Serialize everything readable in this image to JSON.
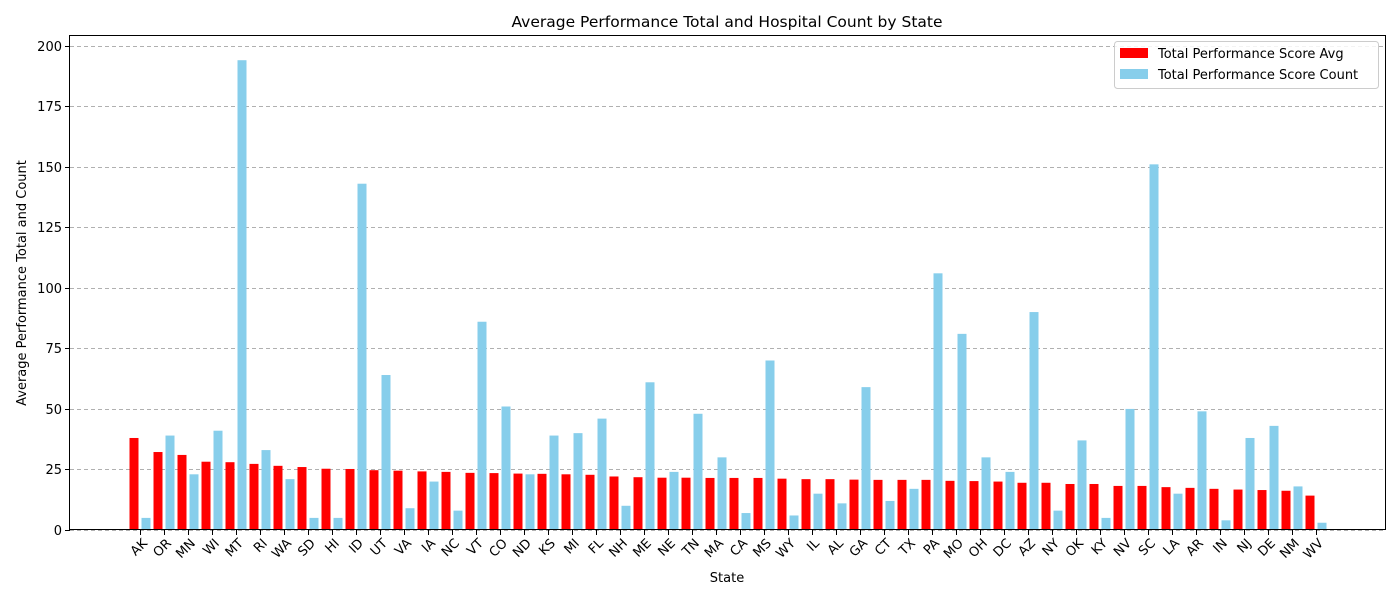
{
  "chart_data": {
    "type": "bar",
    "title": "Average Performance Total and Hospital Count by State",
    "xlabel": "State",
    "ylabel": "Average Performance Total and Count",
    "ylim": [
      0,
      204
    ],
    "yticks": [
      0,
      25,
      50,
      75,
      100,
      125,
      150,
      175,
      200
    ],
    "grid": "y-dashed",
    "legend_position": "top-right",
    "categories": [
      "AK",
      "OR",
      "MN",
      "WI",
      "MT",
      "RI",
      "WA",
      "SD",
      "HI",
      "ID",
      "UT",
      "VA",
      "IA",
      "NC",
      "VT",
      "CO",
      "ND",
      "KS",
      "MI",
      "FL",
      "NH",
      "ME",
      "NE",
      "TN",
      "MA",
      "CA",
      "MS",
      "WY",
      "IL",
      "AL",
      "GA",
      "CT",
      "TX",
      "PA",
      "MO",
      "OH",
      "DC",
      "AZ",
      "NY",
      "OK",
      "KY",
      "NV",
      "SC",
      "LA",
      "AR",
      "IN",
      "NJ",
      "DE",
      "NM",
      "WV"
    ],
    "series": [
      {
        "name": "Total Performance Score Avg",
        "color": "#ff0000",
        "values": [
          38.0,
          32.2,
          31.0,
          28.2,
          28.0,
          27.3,
          26.5,
          26.0,
          25.3,
          25.2,
          24.7,
          24.5,
          24.2,
          24.0,
          23.6,
          23.5,
          23.3,
          23.2,
          23.0,
          22.8,
          22.1,
          21.8,
          21.6,
          21.6,
          21.5,
          21.5,
          21.5,
          21.2,
          21.0,
          21.0,
          20.8,
          20.7,
          20.7,
          20.7,
          20.3,
          20.2,
          20.0,
          19.5,
          19.5,
          19.0,
          19.0,
          18.2,
          18.2,
          17.7,
          17.4,
          17.0,
          16.7,
          16.5,
          16.2,
          14.2
        ]
      },
      {
        "name": "Total Performance Score Count",
        "color": "#87ceeb",
        "values": [
          5,
          39,
          23,
          41,
          194,
          33,
          21,
          5,
          5,
          143,
          64,
          9,
          20,
          8,
          86,
          51,
          23,
          39,
          40,
          46,
          10,
          61,
          24,
          48,
          30,
          7,
          70,
          6,
          15,
          11,
          59,
          12,
          17,
          106,
          81,
          30,
          24,
          90,
          8,
          37,
          5,
          50,
          151,
          15,
          49,
          4,
          38,
          43,
          18,
          3
        ]
      }
    ]
  }
}
